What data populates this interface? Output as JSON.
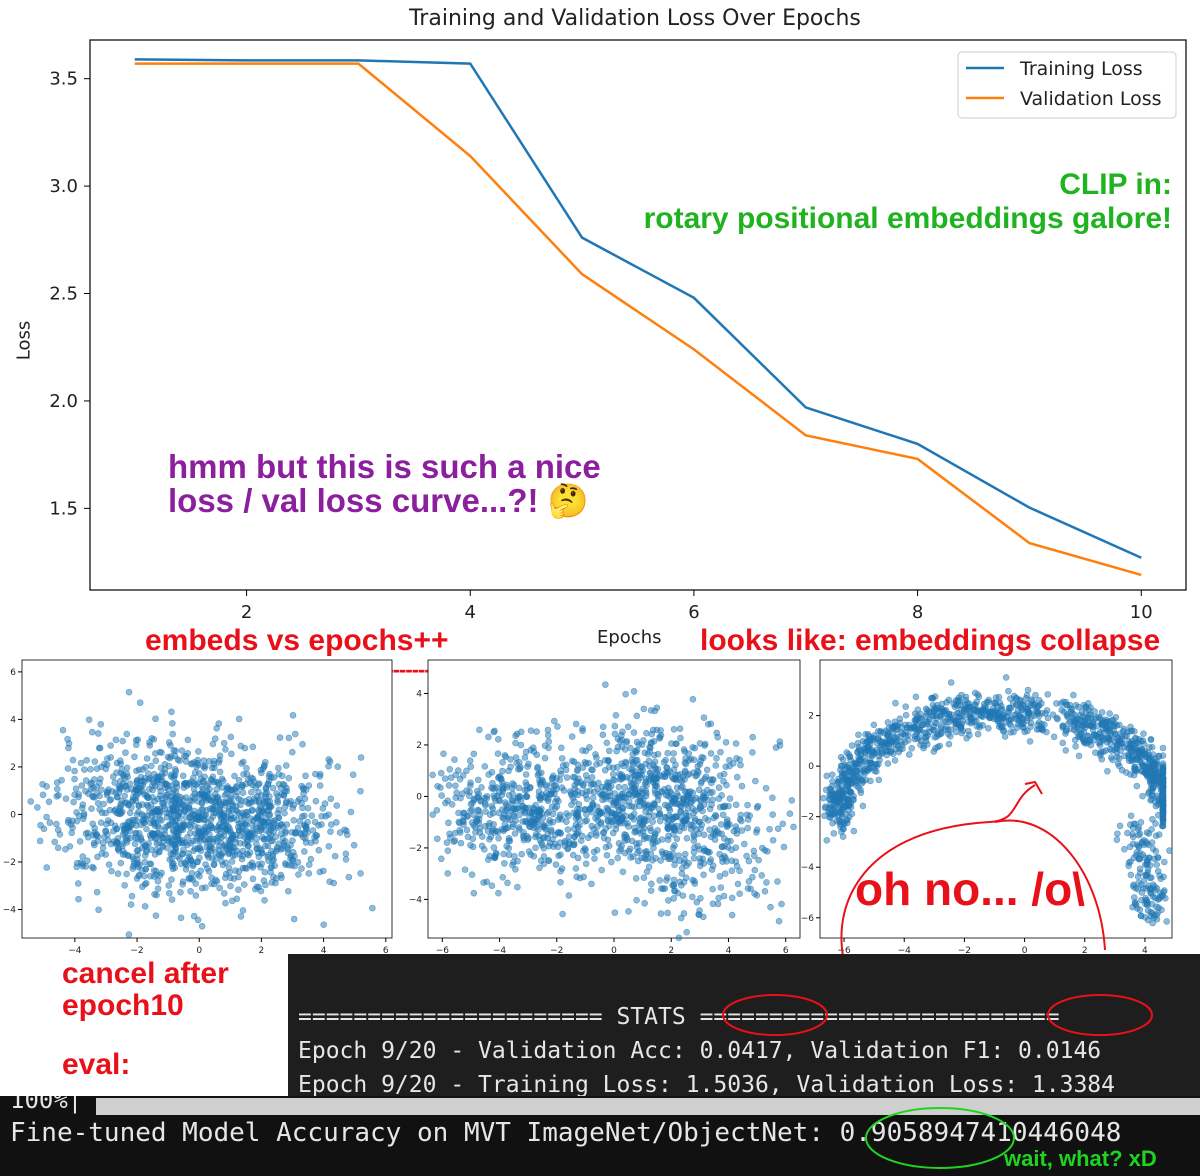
{
  "chart_data": [
    {
      "type": "line",
      "title": "Training and Validation Loss Over Epochs",
      "xlabel": "Epochs",
      "ylabel": "Loss",
      "xlim": [
        0.6,
        10.4
      ],
      "ylim": [
        1.12,
        3.68
      ],
      "xticks": [
        2,
        4,
        6,
        8,
        10
      ],
      "yticks": [
        1.5,
        2.0,
        2.5,
        3.0,
        3.5
      ],
      "x": [
        1,
        2,
        3,
        4,
        5,
        6,
        7,
        8,
        9,
        10
      ],
      "series": [
        {
          "name": "Training Loss",
          "color": "#1f77b4",
          "values": [
            3.59,
            3.585,
            3.585,
            3.57,
            2.76,
            2.48,
            1.97,
            1.8,
            1.5036,
            1.27
          ]
        },
        {
          "name": "Validation Loss",
          "color": "#ff7f0e",
          "values": [
            3.57,
            3.57,
            3.57,
            3.14,
            2.59,
            2.24,
            1.84,
            1.73,
            1.3384,
            1.19
          ]
        }
      ],
      "legend": "top-right",
      "grid": false
    },
    {
      "type": "scatter",
      "xlim": [
        -5.7,
        6.2
      ],
      "ylim": [
        -5.2,
        6.5
      ],
      "xticks": [
        -4,
        -2,
        0,
        2,
        4,
        6
      ],
      "yticks": [
        -4,
        -2,
        0,
        2,
        4,
        6
      ],
      "color": "#1f77b4"
    },
    {
      "type": "scatter",
      "xlim": [
        -6.5,
        6.5
      ],
      "ylim": [
        -5.5,
        5.3
      ],
      "xticks": [
        -6,
        -4,
        -2,
        0,
        2,
        4,
        6
      ],
      "yticks": [
        -4,
        -2,
        0,
        2,
        4
      ],
      "color": "#1f77b4"
    },
    {
      "type": "scatter",
      "xlim": [
        -6.8,
        4.9
      ],
      "ylim": [
        -6.8,
        4.2
      ],
      "xticks": [
        -6,
        -4,
        -2,
        0,
        2,
        4
      ],
      "yticks": [
        -6,
        -4,
        -2,
        0,
        2
      ],
      "color": "#1f77b4"
    }
  ],
  "annotations": {
    "clip_line1": "CLIP in:",
    "clip_line2": "rotary positional embeddings galore!",
    "hmm_line1": "hmm but this is such a nice",
    "hmm_line2": "loss / val loss curve...?! 🤔",
    "embeds_vs_epochs": "embeds vs epochs++",
    "collapse": "looks like: embeddings collapse",
    "arrow_text": "-------------------------------------------------------------------------------->",
    "oh_no": "oh no... /o\\",
    "cancel_line1": "cancel after",
    "cancel_line2": "epoch10",
    "eval": "eval:",
    "wait_what": "wait, what? xD"
  },
  "terminal": {
    "line1": "====================== STATS ==========================",
    "line2": "Epoch 9/20 - Validation Acc: 0.0417, Validation F1: 0.0146",
    "line3": "Epoch 9/20 - Training Loss: 1.5036, Validation Loss: 1.3384",
    "line4": "=======================================================",
    "progress": "100%|",
    "result": "Fine-tuned Model Accuracy on MVT ImageNet/ObjectNet: 0.9058947410446048"
  },
  "colors": {
    "training": "#1f77b4",
    "validation": "#ff7f0e",
    "annotation_green": "#1fb31f",
    "annotation_purple": "#8b1f9e",
    "annotation_red": "#e8111a",
    "terminal_bg": "#1e1e1e"
  }
}
